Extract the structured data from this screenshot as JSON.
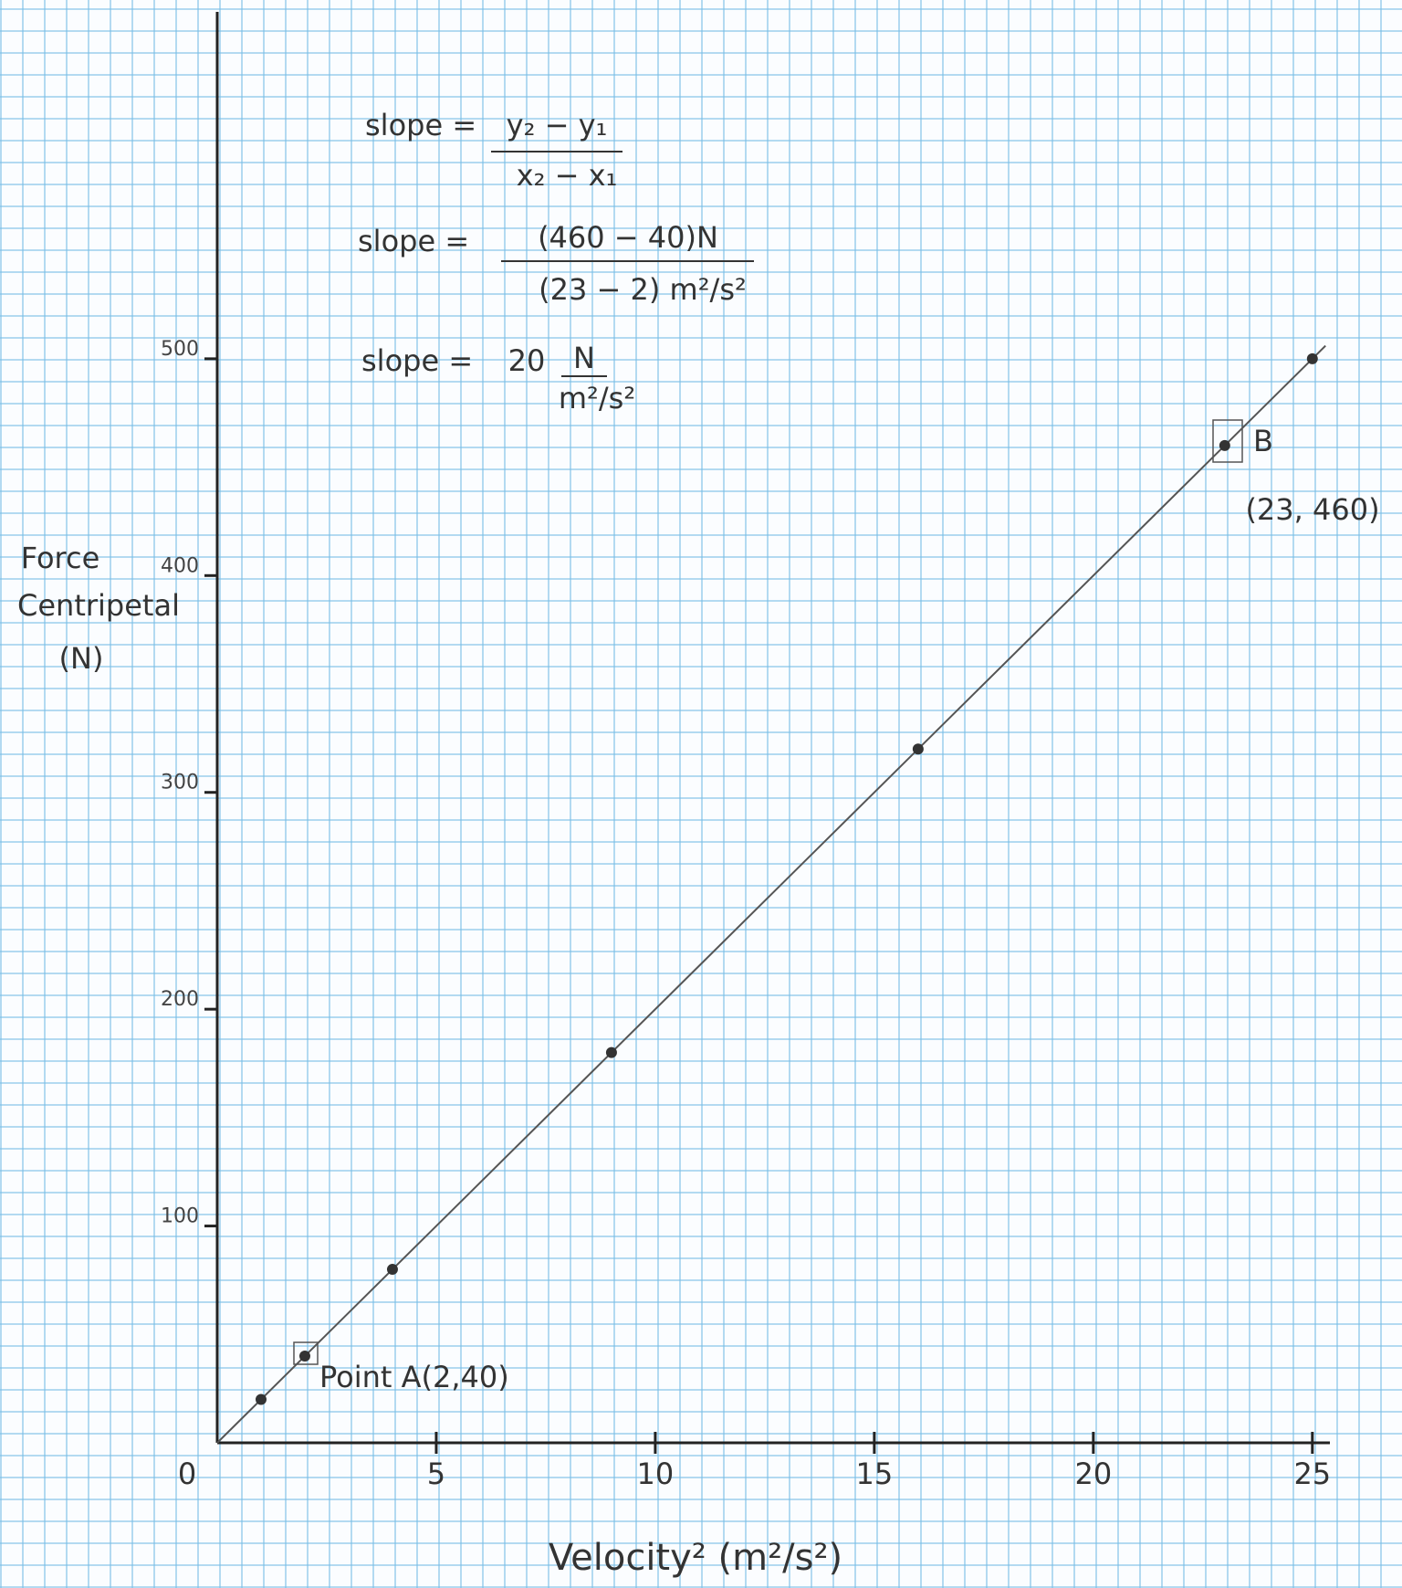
{
  "chart_data": {
    "type": "scatter",
    "x_label": "Velocity² (m²/s²)",
    "y_label": [
      "Force",
      "Centripetal",
      "(N)"
    ],
    "x": [
      1,
      2,
      4,
      9,
      16,
      23,
      25
    ],
    "values": [
      20,
      40,
      80,
      180,
      320,
      460,
      500
    ],
    "color": "#333333",
    "trendline": {
      "x": [
        0,
        25.3
      ],
      "y": [
        0,
        506
      ]
    },
    "xlim": [
      0,
      25.4
    ],
    "ylim": [
      0,
      660
    ],
    "xticks": [
      0,
      5,
      10,
      15,
      20,
      25
    ],
    "yticks": [
      100,
      200,
      300,
      400,
      500
    ],
    "annotations": [
      "slope =",
      "y₂ − y₁",
      "x₂ − x₁",
      "slope =",
      "(460 − 40)N",
      "(23 − 2) m²/s²",
      "slope =",
      "20",
      "N",
      "m²/s²",
      "Point A(2,40)",
      "B",
      "(23, 460)"
    ]
  }
}
